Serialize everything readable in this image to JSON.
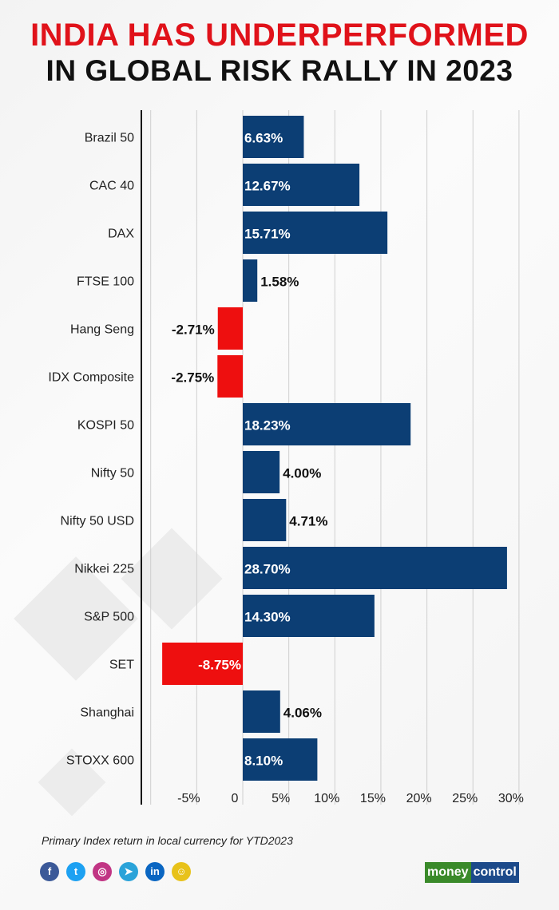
{
  "header": {
    "line1": "INDIA HAS UNDERPERFORMED",
    "line2": "IN GLOBAL RISK RALLY IN 2023"
  },
  "chart_data": {
    "type": "bar",
    "orientation": "horizontal",
    "categories": [
      "Brazil 50",
      "CAC 40",
      "DAX",
      "FTSE 100",
      "Hang Seng",
      "IDX Composite",
      "KOSPI 50",
      "Nifty 50",
      "Nifty 50 USD",
      "Nikkei 225",
      "S&P 500",
      "SET",
      "Shanghai",
      "STOXX 600"
    ],
    "values": [
      6.63,
      12.67,
      15.71,
      1.58,
      -2.71,
      -2.75,
      18.23,
      4.0,
      4.71,
      28.7,
      14.3,
      -8.75,
      4.06,
      8.1
    ],
    "labels": [
      "6.63%",
      "12.67%",
      "15.71%",
      "1.58%",
      "-2.71%",
      "-2.75%",
      "18.23%",
      "4.00%",
      "4.71%",
      "28.70%",
      "14.30%",
      "-8.75%",
      "4.06%",
      "8.10%"
    ],
    "xlim": [
      -10,
      30
    ],
    "ticks": [
      -5,
      0,
      5,
      10,
      15,
      20,
      25,
      30
    ],
    "tick_labels": [
      "-5%",
      "0",
      "5%",
      "10%",
      "15%",
      "20%",
      "25%",
      "30%"
    ],
    "grid": true,
    "colors": {
      "positive": "#0c3e74",
      "negative": "#ee0f0f"
    }
  },
  "footnote": "Primary Index return in local currency for YTD2023",
  "social": [
    {
      "icon": "facebook-icon",
      "glyph": "f",
      "color": "#3b5998"
    },
    {
      "icon": "twitter-icon",
      "glyph": "t",
      "color": "#1da1f2"
    },
    {
      "icon": "instagram-icon",
      "glyph": "◎",
      "color": "#c13584"
    },
    {
      "icon": "telegram-icon",
      "glyph": "➤",
      "color": "#2aa3d9"
    },
    {
      "icon": "linkedin-icon",
      "glyph": "in",
      "color": "#0a66c2"
    },
    {
      "icon": "snapchat-icon",
      "glyph": "☺",
      "color": "#e8c21a"
    }
  ],
  "brand": {
    "part1": "money",
    "part2": "control"
  }
}
